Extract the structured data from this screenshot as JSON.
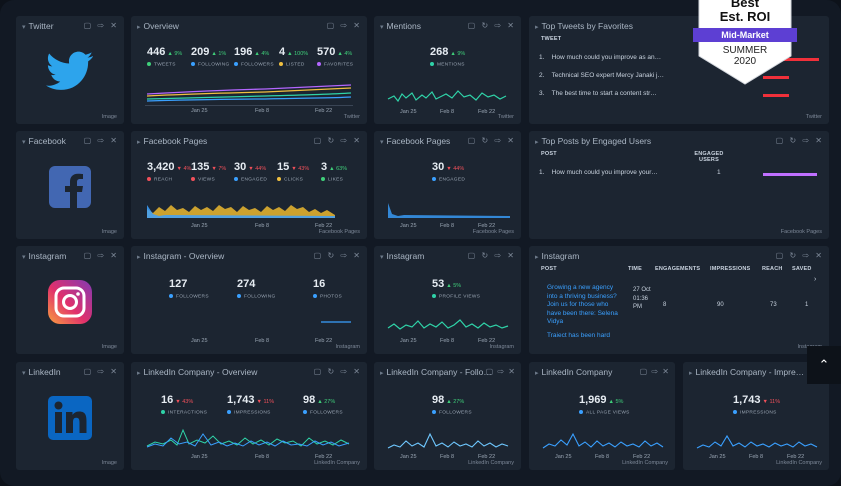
{
  "colors": {
    "bg": "#121924",
    "panel": "#1c2531",
    "accent_green": "#3fcf7a",
    "accent_red": "#f0505a",
    "line_blue": "#3aa0ff",
    "line_teal": "#2fd3a8"
  },
  "badge": {
    "line1": "Best",
    "line2": "Est. ROI",
    "ribbon": "Mid-Market",
    "season": "SUMMER",
    "year": "2020"
  },
  "controls": {
    "icons": "▢ ↻ ⇨ ✕"
  },
  "twitter": {
    "title": "Twitter",
    "footer": "Image",
    "icon": "twitter-bird-icon"
  },
  "overview": {
    "title": "Overview",
    "footer": "Twitter",
    "stats": [
      {
        "value": "446",
        "delta": "▲ 9%",
        "label": "TWEETS",
        "color": "#3fcf7a"
      },
      {
        "value": "209",
        "delta": "▲ 1%",
        "label": "FOLLOWING",
        "color": "#3aa0ff"
      },
      {
        "value": "196",
        "delta": "▲ 4%",
        "label": "FOLLOWERS",
        "color": "#3aa0ff"
      },
      {
        "value": "4",
        "delta": "▲ 100%",
        "label": "LISTED",
        "color": "#f0c040"
      },
      {
        "value": "570",
        "delta": "▲ 4%",
        "label": "FAVORITES",
        "color": "#b366ff"
      }
    ],
    "x_labels": [
      "Jan 25",
      "Feb 8",
      "Feb 22"
    ]
  },
  "mentions": {
    "title": "Mentions",
    "footer": "Twitter",
    "value": "268",
    "delta": "▲ 9%",
    "label": "MENTIONS",
    "x_labels": [
      "Jan 25",
      "Feb 8",
      "Feb 22"
    ]
  },
  "top_tweets": {
    "title": "Top Tweets by Favorites",
    "footer": "Twitter",
    "col_tweet": "TWEET",
    "rows": [
      {
        "n": "1.",
        "text": "How much could you improve as an…"
      },
      {
        "n": "2.",
        "text": "Technical SEO expert Mercy Janaki j…"
      },
      {
        "n": "3.",
        "text": "The best time to start a content str…"
      }
    ]
  },
  "facebook": {
    "title": "Facebook",
    "footer": "Image",
    "icon": "facebook-f-icon"
  },
  "fb_pages": {
    "title": "Facebook Pages",
    "footer": "Facebook Pages",
    "stats": [
      {
        "value": "3,420",
        "delta": "▼ 4%",
        "label": "REACH",
        "color": "#f0505a"
      },
      {
        "value": "135",
        "delta": "▼ 7%",
        "label": "VIEWS",
        "color": "#f0505a"
      },
      {
        "value": "30",
        "delta": "▼ 44%",
        "label": "ENGAGED",
        "color": "#f0505a"
      },
      {
        "value": "15",
        "delta": "▼ 43%",
        "label": "CLICKS",
        "color": "#f0505a"
      },
      {
        "value": "3",
        "delta": "▲ 63%",
        "label": "LIKES",
        "color": "#3fcf7a"
      }
    ],
    "x_labels": [
      "Jan 25",
      "Feb 8",
      "Feb 22"
    ]
  },
  "fb_pages2": {
    "title": "Facebook Pages",
    "footer": "Facebook Pages",
    "value": "30",
    "delta": "▼ 44%",
    "label": "ENGAGED",
    "x_labels": [
      "Jan 25",
      "Feb 8",
      "Feb 22"
    ]
  },
  "top_posts": {
    "title": "Top Posts by Engaged Users",
    "footer": "Facebook Pages",
    "col_post": "POST",
    "col_engaged": "ENGAGED USERS",
    "rows": [
      {
        "n": "1.",
        "text": "How much could you improve your…",
        "value": "1"
      }
    ]
  },
  "instagram": {
    "title": "Instagram",
    "footer": "Image",
    "icon": "instagram-camera-icon"
  },
  "ig_overview": {
    "title": "Instagram - Overview",
    "footer": "Instagram",
    "stats": [
      {
        "value": "127",
        "label": "FOLLOWERS",
        "color": "#3aa0ff"
      },
      {
        "value": "274",
        "label": "FOLLOWING",
        "color": "#3aa0ff"
      },
      {
        "value": "16",
        "label": "PHOTOS",
        "color": "#3aa0ff"
      }
    ],
    "x_labels": [
      "Jan 25",
      "Feb 8",
      "Feb 22"
    ]
  },
  "ig_views": {
    "title": "Instagram",
    "footer": "Instagram",
    "value": "53",
    "delta": "▲ 5%",
    "label": "PROFILE VIEWS",
    "x_labels": [
      "Jan 25",
      "Feb 8",
      "Feb 22"
    ]
  },
  "ig_table": {
    "title": "Instagram",
    "footer": "Instagram",
    "headers": [
      "POST",
      "TIME",
      "ENGAGEMENTS",
      "IMPRESSIONS",
      "REACH",
      "SAVED"
    ],
    "post_text": "Growing a new agency into a thriving business? Join us for those who have been there: Selena Vidya",
    "post_text2": "Traiect has been hard",
    "time": "27 Oct 01:36 PM",
    "engagements": "8",
    "impressions": "90",
    "reach": "73",
    "saved": "1"
  },
  "linkedin": {
    "title": "LinkedIn",
    "footer": "Image",
    "icon": "linkedin-in-icon"
  },
  "li_overview": {
    "title": "LinkedIn Company - Overview",
    "footer": "LinkedIn Company",
    "stats": [
      {
        "value": "16",
        "delta": "▼ 43%",
        "label": "INTERACTIONS",
        "color": "#2fd3a8"
      },
      {
        "value": "1,743",
        "delta": "▼ 11%",
        "label": "IMPRESSIONS",
        "color": "#3aa0ff"
      },
      {
        "value": "98",
        "delta": "▲ 27%",
        "label": "FOLLOWERS",
        "color": "#3aa0ff"
      }
    ],
    "x_labels": [
      "Jan 25",
      "Feb 8",
      "Feb 22"
    ]
  },
  "li_followers": {
    "title": "LinkedIn Company - Follo…",
    "footer": "LinkedIn Company",
    "value": "98",
    "delta": "▲ 27%",
    "label": "FOLLOWERS",
    "x_labels": [
      "Jan 25",
      "Feb 8",
      "Feb 22"
    ]
  },
  "li_views": {
    "title": "LinkedIn Company",
    "footer": "LinkedIn Company",
    "value": "1,969",
    "delta": "▲ 5%",
    "label": "ALL PAGE VIEWS",
    "x_labels": [
      "Jan 25",
      "Feb 8",
      "Feb 22"
    ]
  },
  "li_impr": {
    "title": "LinkedIn Company - Impre…",
    "footer": "LinkedIn Company",
    "value": "1,743",
    "delta": "▼ 11%",
    "label": "IMPRESSIONS",
    "x_labels": [
      "Jan 25",
      "Feb 8",
      "Feb 22"
    ]
  },
  "scroll_top": {
    "label": "⌃"
  }
}
